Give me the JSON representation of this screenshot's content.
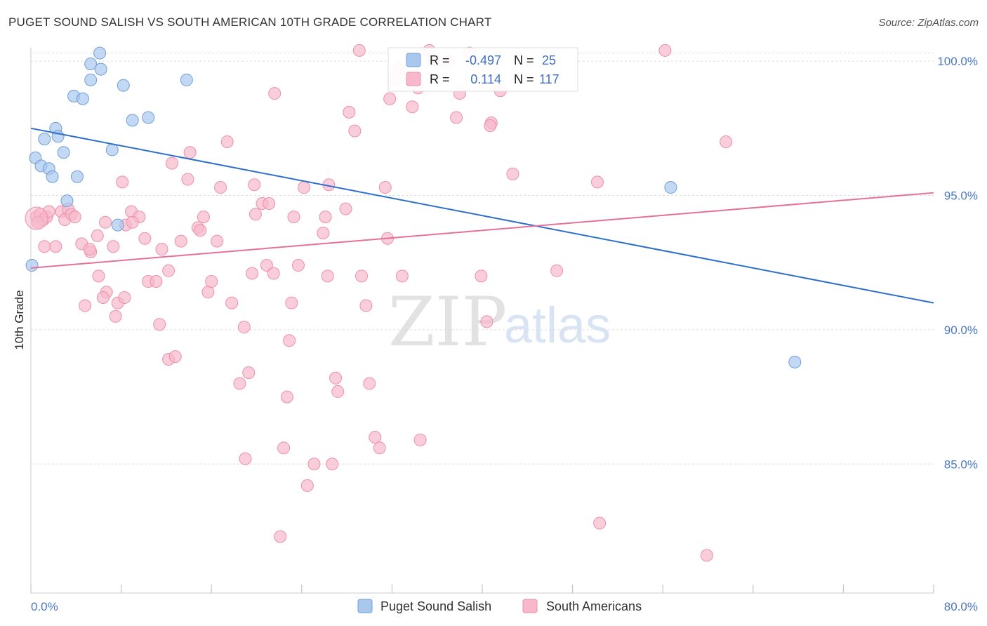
{
  "header": {
    "title": "PUGET SOUND SALISH VS SOUTH AMERICAN 10TH GRADE CORRELATION CHART",
    "source": "Source: ZipAtlas.com"
  },
  "watermark": {
    "zip": "ZIP",
    "atlas": "atlas"
  },
  "colors": {
    "blue_fill": "#aac8ee",
    "blue_stroke": "#6f9fd8",
    "blue_line": "#2f6fcc",
    "pink_fill": "#f7b8cb",
    "pink_stroke": "#ec8fab",
    "pink_line": "#e5709a",
    "grid": "#dddddd",
    "axis_text": "#4a78c2"
  },
  "legend": {
    "entries": [
      {
        "r_label": "R =",
        "r_value": "-0.497",
        "n_label": "N =",
        "n_value": "25"
      },
      {
        "r_label": "R =",
        "r_value": "0.114",
        "n_label": "N =",
        "n_value": "117"
      }
    ],
    "bottom": [
      "Puget Sound Salish",
      "South Americans"
    ]
  },
  "chart_data": {
    "type": "scatter",
    "title": "PUGET SOUND SALISH VS SOUTH AMERICAN 10TH GRADE CORRELATION CHART",
    "xlabel": "",
    "ylabel": "10th Grade",
    "xlim": [
      0,
      80
    ],
    "ylim": [
      80.2,
      100.5
    ],
    "x_tick_labels": [
      "0.0%",
      "80.0%"
    ],
    "y_ticks": [
      85,
      90,
      95,
      100
    ],
    "y_tick_labels": [
      "85.0%",
      "90.0%",
      "95.0%",
      "100.0%"
    ],
    "grid": true,
    "legend_position": "top-center",
    "series": [
      {
        "name": "Puget Sound Salish",
        "r": -0.497,
        "n": 25,
        "trend": {
          "x0": 0,
          "y0": 97.5,
          "x1": 80,
          "y1": 91.0
        },
        "points": [
          [
            6.1,
            100.3
          ],
          [
            5.3,
            99.9
          ],
          [
            6.2,
            99.7
          ],
          [
            5.3,
            99.3
          ],
          [
            8.2,
            99.1
          ],
          [
            13.8,
            99.3
          ],
          [
            3.8,
            98.7
          ],
          [
            4.6,
            98.6
          ],
          [
            9.0,
            97.8
          ],
          [
            10.4,
            97.9
          ],
          [
            2.2,
            97.5
          ],
          [
            1.2,
            97.1
          ],
          [
            2.4,
            97.2
          ],
          [
            7.2,
            96.7
          ],
          [
            2.9,
            96.6
          ],
          [
            0.4,
            96.4
          ],
          [
            0.9,
            96.1
          ],
          [
            1.6,
            96.0
          ],
          [
            1.9,
            95.7
          ],
          [
            4.1,
            95.7
          ],
          [
            56.7,
            95.3
          ],
          [
            3.2,
            94.8
          ],
          [
            7.7,
            93.9
          ],
          [
            0.1,
            92.4
          ],
          [
            67.7,
            88.8
          ]
        ]
      },
      {
        "name": "South Americans",
        "r": 0.114,
        "n": 117,
        "trend": {
          "x0": 0,
          "y0": 92.3,
          "x1": 80,
          "y1": 95.1
        },
        "points": [
          [
            0.5,
            94.2
          ],
          [
            0.8,
            94.3
          ],
          [
            1.1,
            94.1
          ],
          [
            1.4,
            94.2
          ],
          [
            1.6,
            94.4
          ],
          [
            0.6,
            94.0
          ],
          [
            1.2,
            93.1
          ],
          [
            2.2,
            93.1
          ],
          [
            2.7,
            94.4
          ],
          [
            3.0,
            94.1
          ],
          [
            3.3,
            94.5
          ],
          [
            3.6,
            94.3
          ],
          [
            3.9,
            94.2
          ],
          [
            4.5,
            93.2
          ],
          [
            5.3,
            92.9
          ],
          [
            5.2,
            93.0
          ],
          [
            5.9,
            93.5
          ],
          [
            6.6,
            94.0
          ],
          [
            7.3,
            93.1
          ],
          [
            7.5,
            90.5
          ],
          [
            7.7,
            91.0
          ],
          [
            8.1,
            95.5
          ],
          [
            8.3,
            91.2
          ],
          [
            8.4,
            93.9
          ],
          [
            8.9,
            94.4
          ],
          [
            9.6,
            94.2
          ],
          [
            9.0,
            94.0
          ],
          [
            6.0,
            92.0
          ],
          [
            6.7,
            91.4
          ],
          [
            6.4,
            91.2
          ],
          [
            4.8,
            90.9
          ],
          [
            10.1,
            93.4
          ],
          [
            10.4,
            91.8
          ],
          [
            11.1,
            91.8
          ],
          [
            11.4,
            90.2
          ],
          [
            11.6,
            93.0
          ],
          [
            12.2,
            92.2
          ],
          [
            12.5,
            96.2
          ],
          [
            12.2,
            88.9
          ],
          [
            12.8,
            89.0
          ],
          [
            13.3,
            93.3
          ],
          [
            13.9,
            95.6
          ],
          [
            14.1,
            96.6
          ],
          [
            14.8,
            93.8
          ],
          [
            15.3,
            94.2
          ],
          [
            15.0,
            93.7
          ],
          [
            15.7,
            91.4
          ],
          [
            16.0,
            91.8
          ],
          [
            16.5,
            93.3
          ],
          [
            16.8,
            95.3
          ],
          [
            17.4,
            97.0
          ],
          [
            17.8,
            91.0
          ],
          [
            18.5,
            88.0
          ],
          [
            18.9,
            90.1
          ],
          [
            19.0,
            85.2
          ],
          [
            19.3,
            88.4
          ],
          [
            19.6,
            92.1
          ],
          [
            19.8,
            95.4
          ],
          [
            19.9,
            94.3
          ],
          [
            20.5,
            94.7
          ],
          [
            20.9,
            92.4
          ],
          [
            21.1,
            94.7
          ],
          [
            21.5,
            92.1
          ],
          [
            21.6,
            98.8
          ],
          [
            22.1,
            82.3
          ],
          [
            22.4,
            85.6
          ],
          [
            22.7,
            87.5
          ],
          [
            22.9,
            89.6
          ],
          [
            23.1,
            91.0
          ],
          [
            23.3,
            94.2
          ],
          [
            23.7,
            92.4
          ],
          [
            24.2,
            95.3
          ],
          [
            24.5,
            84.2
          ],
          [
            25.1,
            85.0
          ],
          [
            25.9,
            93.6
          ],
          [
            26.3,
            92.0
          ],
          [
            26.4,
            95.4
          ],
          [
            26.1,
            94.2
          ],
          [
            26.7,
            85.0
          ],
          [
            27.0,
            88.2
          ],
          [
            27.2,
            87.7
          ],
          [
            27.9,
            94.5
          ],
          [
            28.2,
            98.1
          ],
          [
            28.7,
            97.4
          ],
          [
            29.1,
            100.4
          ],
          [
            29.3,
            92.0
          ],
          [
            29.7,
            90.9
          ],
          [
            30.0,
            88.0
          ],
          [
            30.5,
            86.0
          ],
          [
            30.9,
            85.6
          ],
          [
            31.4,
            95.3
          ],
          [
            31.6,
            93.4
          ],
          [
            31.8,
            98.6
          ],
          [
            32.2,
            99.3
          ],
          [
            32.6,
            99.7
          ],
          [
            32.9,
            92.0
          ],
          [
            33.8,
            98.3
          ],
          [
            34.5,
            85.9
          ],
          [
            34.3,
            99.0
          ],
          [
            35.3,
            100.4
          ],
          [
            35.7,
            100.1
          ],
          [
            37.7,
            97.9
          ],
          [
            38.0,
            98.8
          ],
          [
            37.0,
            100.0
          ],
          [
            38.9,
            100.3
          ],
          [
            39.9,
            92.0
          ],
          [
            40.4,
            90.3
          ],
          [
            40.8,
            97.7
          ],
          [
            40.7,
            97.6
          ],
          [
            41.6,
            98.9
          ],
          [
            42.7,
            95.8
          ],
          [
            46.6,
            92.2
          ],
          [
            50.2,
            95.5
          ],
          [
            50.4,
            82.8
          ],
          [
            56.2,
            100.4
          ],
          [
            59.9,
            81.6
          ],
          [
            61.6,
            97.0
          ]
        ]
      }
    ]
  }
}
